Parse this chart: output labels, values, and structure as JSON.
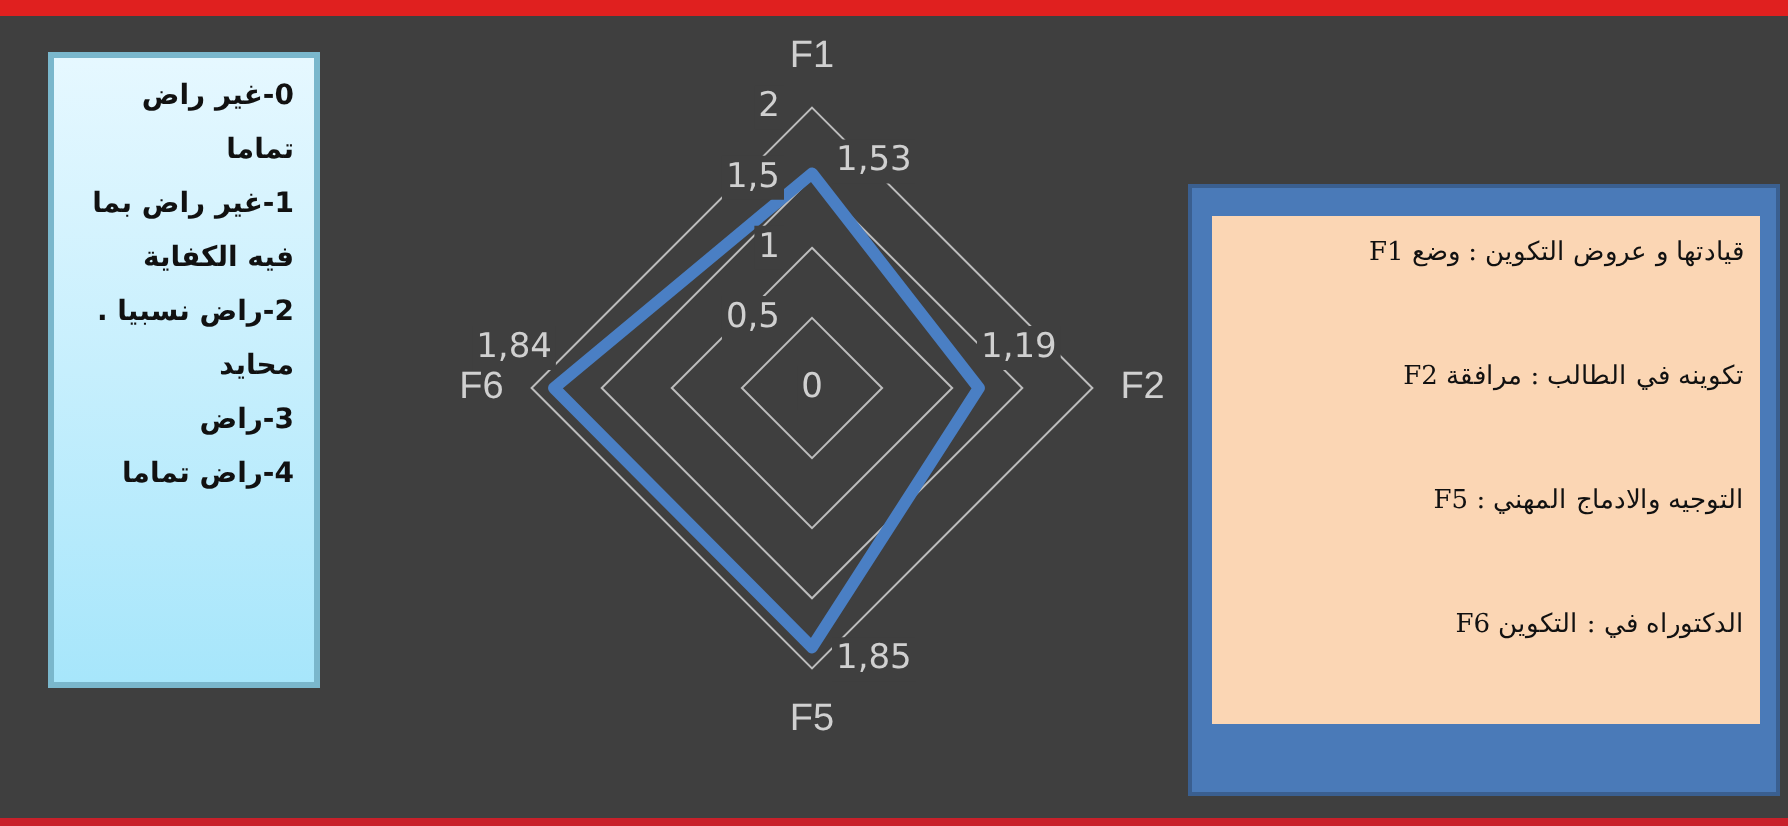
{
  "chart_data": {
    "type": "radar",
    "categories": [
      "F1",
      "F2",
      "F5",
      "F6"
    ],
    "series": [
      {
        "color": "#4a7fc4",
        "values": [
          1.53,
          1.19,
          1.85,
          1.84
        ],
        "value_labels": [
          "1,53",
          "1,19",
          "1,85",
          "1,84"
        ]
      }
    ],
    "ylim": [
      0,
      2
    ],
    "yticks": [
      {
        "value": 0,
        "label": "0"
      },
      {
        "value": 0.5,
        "label": "0,5"
      },
      {
        "value": 1,
        "label": "1"
      },
      {
        "value": 1.5,
        "label": "1,5"
      },
      {
        "value": 2,
        "label": "2"
      }
    ],
    "grid": true,
    "marker": "none",
    "annotations": [
      "0-غير راض تماما\n1-غير راض بما فيه الكفاية\n2-راض نسبيا . محايد\n3-راض\n4-راض تماما",
      "قيادتها و عروض التكوين : وضع F1\nتكوينه في الطالب : مرافقة F2\nالتوجيه والادماج المهني : F5\nالدكتوراه في : التكوين F6"
    ]
  }
}
